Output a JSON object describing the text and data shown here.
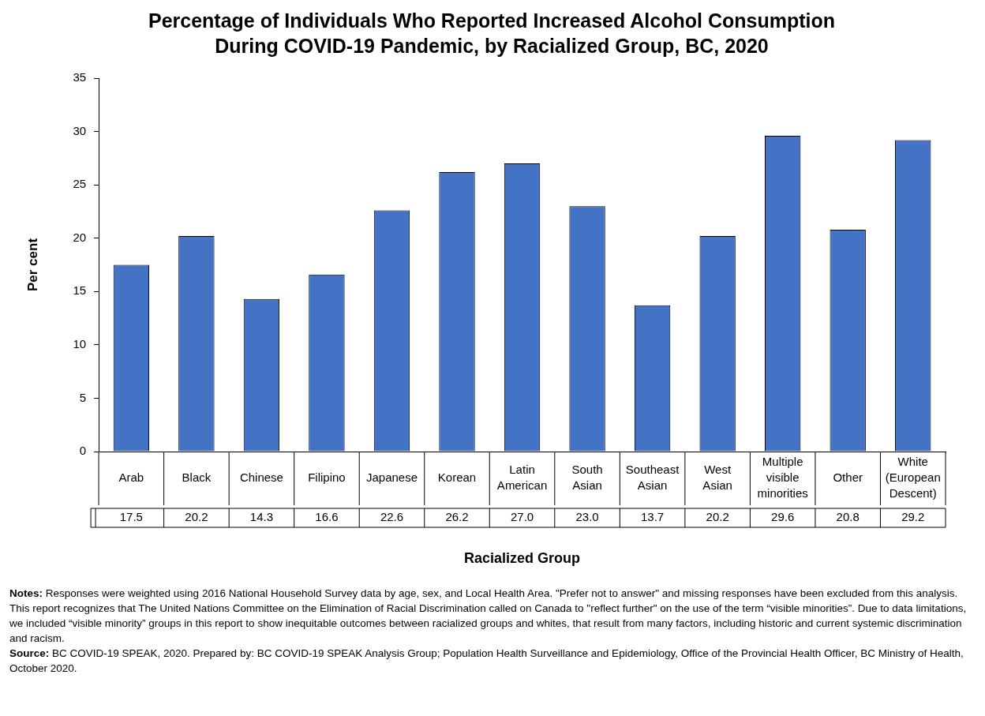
{
  "chart_data": {
    "type": "bar",
    "title": "Percentage of Individuals Who Reported Increased Alcohol Consumption During COVID-19 Pandemic, by Racialized Group, BC, 2020",
    "xlabel": "Racialized Group",
    "ylabel": "Per cent",
    "categories": [
      "Arab",
      "Black",
      "Chinese",
      "Filipino",
      "Japanese",
      "Korean",
      "Latin American",
      "South Asian",
      "Southeast Asian",
      "West Asian",
      "Multiple visible minorities",
      "Other",
      "White (European Descent)"
    ],
    "values": [
      17.5,
      20.2,
      14.3,
      16.6,
      22.6,
      26.2,
      27.0,
      23.0,
      13.7,
      20.2,
      29.6,
      20.8,
      29.2
    ],
    "value_labels": [
      "17.5",
      "20.2",
      "14.3",
      "16.6",
      "22.6",
      "26.2",
      "27.0",
      "23.0",
      "13.7",
      "20.2",
      "29.6",
      "20.8",
      "29.2"
    ],
    "color": "#4472c4",
    "ylim": [
      0,
      35
    ],
    "yticks": [
      0,
      5,
      10,
      15,
      20,
      25,
      30,
      35
    ],
    "grid": false,
    "legend": false,
    "annotations": [
      "Notes: Responses were weighted using 2016 National Household Survey data by age, sex, and Local Health Area. \"Prefer not to answer\" and missing responses have been excluded from this analysis. This report recognizes that The United Nations Committee on the Elimination of Racial Discrimination called on Canada to \"reflect further\" on the use of the term “visible minorities”. Due to data limitations, we included “visible minority” groups in this report to show inequitable outcomes between racialized groups and whites, that result from many factors, including historic and current systemic discrimination and racism.",
      "Source: BC COVID-19 SPEAK, 2020. Prepared by: BC COVID-19 SPEAK Analysis Group; Population Health Surveillance and Epidemiology, Office of the Provincial Health Officer, BC Ministry of Health, October 2020."
    ]
  }
}
